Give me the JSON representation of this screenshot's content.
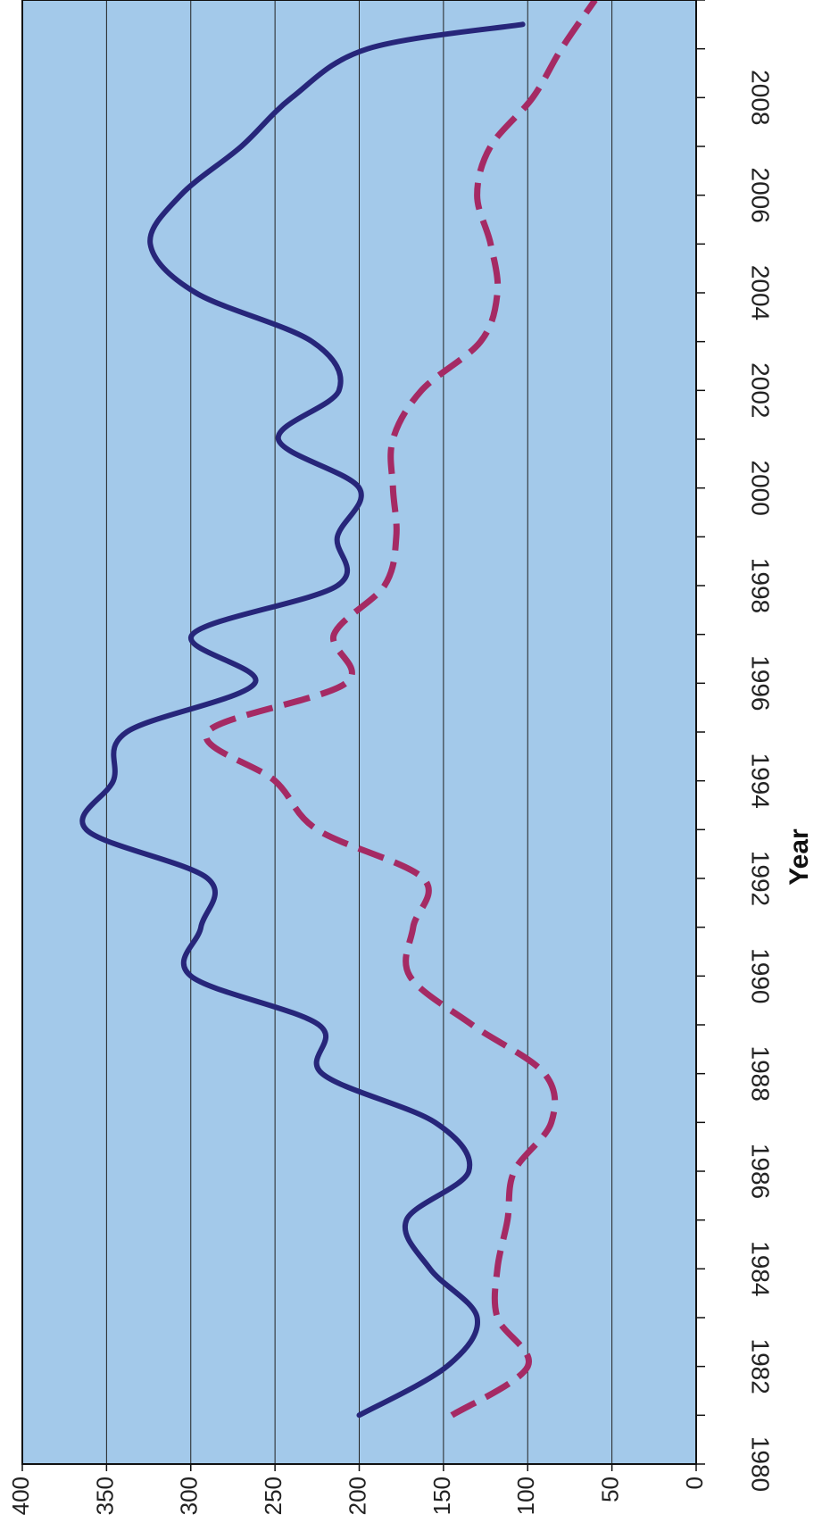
{
  "chart_data": {
    "type": "line",
    "xlabel": "Year",
    "ylabel": "",
    "ylim": [
      0,
      400
    ],
    "xlim": [
      1980,
      2010
    ],
    "y_ticks": [
      0,
      50,
      100,
      150,
      200,
      250,
      300,
      350,
      400
    ],
    "x_tick_labels": [
      "1980",
      "1982",
      "1984",
      "1986",
      "1988",
      "1990",
      "1992",
      "1994",
      "1996",
      "1998",
      "2000",
      "2002",
      "2004",
      "2006",
      "2008"
    ],
    "grid": true,
    "orientation": "rotated 90 degrees clockwise (years run along the vertical axis, values along the horizontal axis, labels printed rotated)",
    "colors": {
      "plot_background": "#a3c9ea",
      "series_solid": "#27267a",
      "series_dashed": "#a52a64",
      "gridline": "#222222"
    },
    "series": [
      {
        "style": "solid",
        "x": [
          1981,
          1982,
          1983,
          1984,
          1985,
          1986,
          1987,
          1988,
          1989,
          1990,
          1991,
          1992,
          1993,
          1994,
          1995,
          1996,
          1997,
          1998,
          1999,
          2000,
          2001,
          2002,
          2003,
          2004,
          2005,
          2006,
          2007,
          2008,
          2009,
          2009.5
        ],
        "values": [
          200,
          148,
          130,
          158,
          172,
          135,
          155,
          222,
          224,
          300,
          294,
          290,
          362,
          346,
          338,
          262,
          299,
          213,
          213,
          200,
          248,
          212,
          228,
          297,
          324,
          306,
          270,
          240,
          195,
          103
        ]
      },
      {
        "style": "dashed",
        "x": [
          1981,
          1982,
          1983,
          1984,
          1985,
          1986,
          1987,
          1988,
          1989,
          1990,
          1991,
          1992,
          1993,
          1994,
          1995,
          1996,
          1997,
          1998,
          1999,
          2000,
          2001,
          2002,
          2003,
          2004,
          2005,
          2006,
          2007,
          2008,
          2009,
          2010
        ],
        "values": [
          145,
          100,
          118,
          118,
          112,
          108,
          86,
          90,
          133,
          170,
          168,
          162,
          225,
          250,
          290,
          208,
          215,
          185,
          178,
          180,
          180,
          163,
          128,
          118,
          122,
          130,
          122,
          97,
          80,
          60
        ]
      }
    ]
  }
}
